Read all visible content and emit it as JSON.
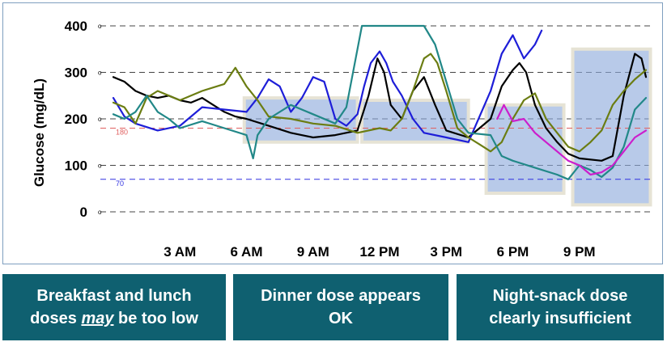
{
  "chart_data": {
    "type": "line",
    "ylabel": "Glucose (mg/dL)",
    "y_ticks": [
      400,
      300,
      200,
      100,
      0
    ],
    "ylim": [
      0,
      400
    ],
    "x_tick_labels": [
      "3 AM",
      "6 AM",
      "9 AM",
      "12 PM",
      "3 PM",
      "6 PM",
      "9 PM"
    ],
    "x_tick_hours": [
      3,
      6,
      9,
      12,
      15,
      18,
      21
    ],
    "xlim_hours": [
      0,
      24
    ],
    "grid": "dashed horizontal",
    "reference_lines": [
      {
        "label": "180",
        "value": 180,
        "color": "#e06060"
      },
      {
        "label": "70",
        "value": 70,
        "color": "#3030e0"
      }
    ],
    "highlight_regions": [
      {
        "start_hour": 5.9,
        "end_hour": 11.0,
        "y_low": 150,
        "y_high": 245
      },
      {
        "start_hour": 11.2,
        "end_hour": 16.0,
        "y_low": 150,
        "y_high": 240
      },
      {
        "start_hour": 16.8,
        "end_hour": 20.3,
        "y_low": 40,
        "y_high": 230
      },
      {
        "start_hour": 20.7,
        "end_hour": 24.2,
        "y_low": 15,
        "y_high": 350
      }
    ],
    "series": [
      {
        "color": "#000000",
        "points": [
          [
            0,
            290
          ],
          [
            0.5,
            280
          ],
          [
            1,
            260
          ],
          [
            1.5,
            250
          ],
          [
            2,
            245
          ],
          [
            2.5,
            250
          ],
          [
            3,
            240
          ],
          [
            3.5,
            235
          ],
          [
            4,
            245
          ],
          [
            4.5,
            230
          ],
          [
            5,
            215
          ],
          [
            5.5,
            205
          ],
          [
            6,
            200
          ],
          [
            7,
            185
          ],
          [
            8,
            170
          ],
          [
            9,
            160
          ],
          [
            10,
            165
          ],
          [
            11,
            175
          ],
          [
            11.5,
            250
          ],
          [
            11.9,
            330
          ],
          [
            12.2,
            300
          ],
          [
            12.5,
            230
          ],
          [
            13,
            200
          ],
          [
            13.5,
            260
          ],
          [
            14,
            290
          ],
          [
            14.5,
            230
          ],
          [
            15,
            175
          ],
          [
            16,
            160
          ],
          [
            17,
            200
          ],
          [
            17.5,
            270
          ],
          [
            18,
            305
          ],
          [
            18.3,
            320
          ],
          [
            18.6,
            300
          ],
          [
            19,
            230
          ],
          [
            19.5,
            180
          ],
          [
            20,
            150
          ],
          [
            20.5,
            125
          ],
          [
            21,
            115
          ],
          [
            22,
            110
          ],
          [
            22.5,
            120
          ],
          [
            23,
            250
          ],
          [
            23.5,
            340
          ],
          [
            23.8,
            330
          ],
          [
            24,
            290
          ]
        ]
      },
      {
        "color": "#1e1ed8",
        "points": [
          [
            0,
            245
          ],
          [
            0.5,
            205
          ],
          [
            1,
            190
          ],
          [
            2,
            175
          ],
          [
            3,
            185
          ],
          [
            4,
            225
          ],
          [
            5,
            220
          ],
          [
            6,
            215
          ],
          [
            6.5,
            245
          ],
          [
            7,
            285
          ],
          [
            7.5,
            270
          ],
          [
            8,
            215
          ],
          [
            8.5,
            245
          ],
          [
            9,
            290
          ],
          [
            9.5,
            280
          ],
          [
            10,
            200
          ],
          [
            10.5,
            185
          ],
          [
            11,
            210
          ],
          [
            11.3,
            270
          ],
          [
            11.6,
            320
          ],
          [
            12,
            345
          ],
          [
            12.3,
            320
          ],
          [
            12.6,
            280
          ],
          [
            13,
            250
          ],
          [
            13.5,
            200
          ],
          [
            14,
            170
          ],
          [
            15,
            160
          ],
          [
            16,
            150
          ],
          [
            17,
            260
          ],
          [
            17.5,
            340
          ],
          [
            18,
            380
          ],
          [
            18.5,
            330
          ],
          [
            19,
            360
          ],
          [
            19.3,
            390
          ]
        ]
      },
      {
        "color": "#6b7d12",
        "points": [
          [
            0,
            235
          ],
          [
            0.5,
            225
          ],
          [
            1,
            190
          ],
          [
            1.5,
            245
          ],
          [
            2,
            260
          ],
          [
            3,
            240
          ],
          [
            4,
            260
          ],
          [
            5,
            275
          ],
          [
            5.5,
            310
          ],
          [
            6,
            270
          ],
          [
            6.5,
            240
          ],
          [
            7,
            205
          ],
          [
            8,
            200
          ],
          [
            9,
            190
          ],
          [
            10,
            185
          ],
          [
            11,
            170
          ],
          [
            12,
            180
          ],
          [
            12.5,
            175
          ],
          [
            13,
            200
          ],
          [
            13.5,
            260
          ],
          [
            14,
            330
          ],
          [
            14.3,
            340
          ],
          [
            14.6,
            320
          ],
          [
            15,
            260
          ],
          [
            15.5,
            180
          ],
          [
            16,
            160
          ],
          [
            16.5,
            145
          ],
          [
            17,
            130
          ],
          [
            17.5,
            150
          ],
          [
            18,
            200
          ],
          [
            18.5,
            240
          ],
          [
            19,
            255
          ],
          [
            19.5,
            200
          ],
          [
            20,
            170
          ],
          [
            20.5,
            140
          ],
          [
            21,
            130
          ],
          [
            21.5,
            150
          ],
          [
            22,
            175
          ],
          [
            22.5,
            230
          ],
          [
            23,
            260
          ],
          [
            23.5,
            285
          ],
          [
            24,
            305
          ]
        ]
      },
      {
        "color": "#228888",
        "points": [
          [
            0,
            210
          ],
          [
            0.5,
            200
          ],
          [
            1,
            215
          ],
          [
            1.5,
            250
          ],
          [
            2,
            215
          ],
          [
            2.5,
            200
          ],
          [
            3,
            180
          ],
          [
            4,
            195
          ],
          [
            5,
            180
          ],
          [
            6,
            165
          ],
          [
            6.3,
            115
          ],
          [
            6.5,
            165
          ],
          [
            7,
            200
          ],
          [
            8,
            230
          ],
          [
            9,
            210
          ],
          [
            10,
            190
          ],
          [
            10.5,
            225
          ],
          [
            11,
            350
          ],
          [
            11.2,
            400
          ],
          [
            12,
            400
          ],
          [
            13,
            400
          ],
          [
            14,
            400
          ],
          [
            14.5,
            360
          ],
          [
            15,
            280
          ],
          [
            15.5,
            200
          ],
          [
            16,
            170
          ],
          [
            17,
            165
          ],
          [
            17.5,
            120
          ],
          [
            18,
            110
          ],
          [
            19,
            95
          ],
          [
            20,
            80
          ],
          [
            20.5,
            70
          ],
          [
            21,
            100
          ],
          [
            21.5,
            90
          ],
          [
            22,
            75
          ],
          [
            22.5,
            95
          ],
          [
            23,
            140
          ],
          [
            23.5,
            220
          ],
          [
            24,
            245
          ]
        ]
      },
      {
        "color": "#cc1ecc",
        "points": [
          [
            17.3,
            200
          ],
          [
            17.6,
            230
          ],
          [
            18,
            195
          ],
          [
            18.5,
            200
          ],
          [
            19,
            170
          ],
          [
            19.5,
            150
          ],
          [
            20,
            130
          ],
          [
            20.5,
            110
          ],
          [
            21,
            100
          ],
          [
            21.5,
            80
          ],
          [
            22,
            85
          ],
          [
            22.5,
            100
          ],
          [
            23,
            130
          ],
          [
            23.5,
            160
          ],
          [
            24,
            175
          ]
        ]
      }
    ]
  },
  "captions": {
    "left_line1": "Breakfast and lunch",
    "left_line2_pre": "doses ",
    "left_line2_em": "may",
    "left_line2_post": " be too low",
    "middle_line1": "Dinner dose appears",
    "middle_line2": "OK",
    "right_line1": "Night-snack dose",
    "right_line2": "clearly insufficient"
  }
}
